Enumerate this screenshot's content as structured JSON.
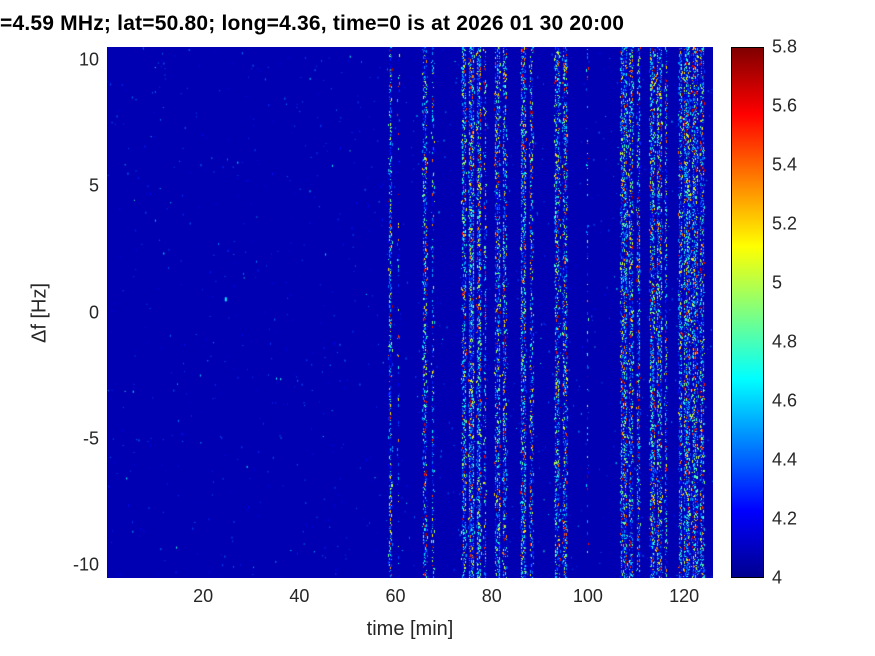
{
  "colors": {
    "figure_background": "#ffffff",
    "axis_text": "#262626",
    "title_text": "#000000",
    "heatmap_base": "#0000a8"
  },
  "chart_data": {
    "type": "heatmap",
    "title": "=4.59 MHz;  lat=50.80; long=4.36, time=0 is at 2026 01 30 20:00",
    "xlabel": "time [min]",
    "ylabel": "Δf [Hz]",
    "xlim": [
      0,
      126
    ],
    "ylim": [
      -10.5,
      10.5
    ],
    "xticks": [
      20,
      40,
      60,
      80,
      100,
      120
    ],
    "yticks": [
      10,
      5,
      0,
      -5,
      -10
    ],
    "colorbar": {
      "min": 4,
      "max": 5.8,
      "ticks": [
        4,
        4.2,
        4.4,
        4.6,
        4.8,
        5,
        5.2,
        5.4,
        5.6,
        5.8
      ]
    },
    "colormap": {
      "name": "jet",
      "stops": [
        [
          0,
          "#00008f"
        ],
        [
          0.125,
          "#0000ff"
        ],
        [
          0.375,
          "#00ffff"
        ],
        [
          0.625,
          "#ffff00"
        ],
        [
          0.875,
          "#ff0000"
        ],
        [
          1,
          "#800000"
        ]
      ]
    },
    "background_value": 4.07,
    "noise": {
      "background_density": 0.004,
      "seed": 42
    },
    "stripes": [
      {
        "t": 59.0,
        "width": 0.7,
        "density": 0.5
      },
      {
        "t": 60.6,
        "width": 0.3,
        "density": 0.15
      },
      {
        "t": 66.1,
        "width": 0.9,
        "density": 0.55
      },
      {
        "t": 67.8,
        "width": 0.5,
        "density": 0.35
      },
      {
        "t": 74.3,
        "width": 0.9,
        "density": 0.6
      },
      {
        "t": 75.8,
        "width": 1.1,
        "density": 0.7
      },
      {
        "t": 77.3,
        "width": 0.9,
        "density": 0.6
      },
      {
        "t": 78.6,
        "width": 0.5,
        "density": 0.4
      },
      {
        "t": 81.2,
        "width": 1.0,
        "density": 0.65
      },
      {
        "t": 82.8,
        "width": 0.8,
        "density": 0.5
      },
      {
        "t": 86.6,
        "width": 1.1,
        "density": 0.65
      },
      {
        "t": 88.2,
        "width": 0.7,
        "density": 0.45
      },
      {
        "t": 93.7,
        "width": 1.0,
        "density": 0.6
      },
      {
        "t": 95.3,
        "width": 0.9,
        "density": 0.55
      },
      {
        "t": 100.0,
        "width": 0.3,
        "density": 0.12
      },
      {
        "t": 107.4,
        "width": 1.2,
        "density": 0.7
      },
      {
        "t": 109.0,
        "width": 0.8,
        "density": 0.5
      },
      {
        "t": 110.4,
        "width": 0.6,
        "density": 0.4
      },
      {
        "t": 113.3,
        "width": 1.0,
        "density": 0.6
      },
      {
        "t": 115.0,
        "width": 1.1,
        "density": 0.65
      },
      {
        "t": 116.3,
        "width": 0.5,
        "density": 0.4
      },
      {
        "t": 119.3,
        "width": 0.7,
        "density": 0.5
      },
      {
        "t": 120.6,
        "width": 1.3,
        "density": 0.75
      },
      {
        "t": 122.3,
        "width": 1.2,
        "density": 0.7
      },
      {
        "t": 123.6,
        "width": 0.8,
        "density": 0.55
      }
    ],
    "specks": [
      {
        "t": 24.5,
        "df": 0.6,
        "value": 4.65,
        "w": 2,
        "h": 4
      }
    ]
  }
}
